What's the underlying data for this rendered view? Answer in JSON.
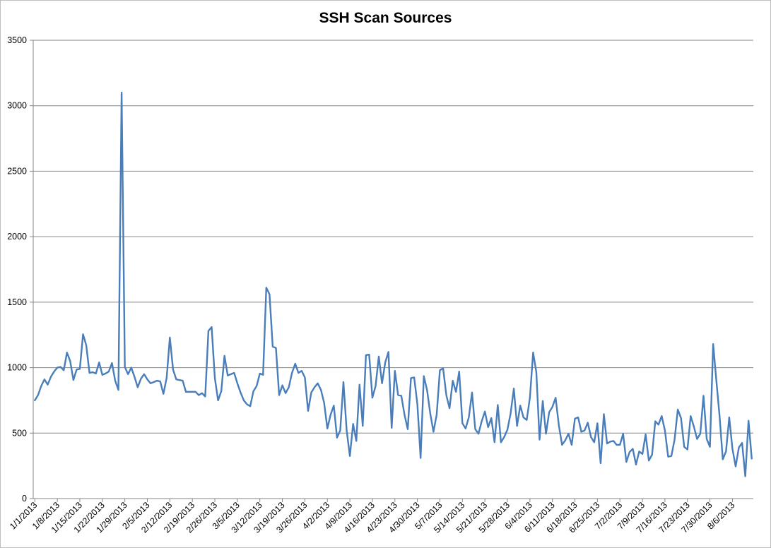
{
  "chart_data": {
    "type": "line",
    "title": "SSH Scan Sources",
    "xlabel": "",
    "ylabel": "",
    "ylim": [
      0,
      3500
    ],
    "yticks": [
      0,
      500,
      1000,
      1500,
      2000,
      2500,
      3000,
      3500
    ],
    "grid": "horizontal",
    "legend": "none",
    "series_color": "#4a7ebb",
    "x_start": "1/1/2013",
    "x_end": "8/12/2013",
    "x_tick_labels": [
      "1/1/2013",
      "1/8/2013",
      "1/15/2013",
      "1/22/2013",
      "1/29/2013",
      "2/5/2013",
      "2/12/2013",
      "2/19/2013",
      "2/26/2013",
      "3/5/2013",
      "3/12/2013",
      "3/19/2013",
      "3/26/2013",
      "4/2/2013",
      "4/9/2013",
      "4/16/2013",
      "4/23/2013",
      "4/30/2013",
      "5/7/2013",
      "5/14/2013",
      "5/21/2013",
      "5/28/2013",
      "6/4/2013",
      "6/11/2013",
      "6/18/2013",
      "6/25/2013",
      "7/2/2013",
      "7/9/2013",
      "7/16/2013",
      "7/23/2013",
      "7/30/2013",
      "8/6/2013"
    ],
    "values": [
      750,
      790,
      860,
      910,
      870,
      930,
      970,
      1000,
      1005,
      980,
      1115,
      1050,
      905,
      985,
      990,
      1255,
      1170,
      960,
      965,
      955,
      1040,
      945,
      955,
      970,
      1035,
      900,
      830,
      3100,
      1005,
      950,
      1000,
      930,
      850,
      915,
      950,
      910,
      880,
      890,
      900,
      895,
      800,
      920,
      1230,
      985,
      910,
      905,
      900,
      815,
      815,
      815,
      815,
      790,
      805,
      780,
      1280,
      1310,
      920,
      750,
      820,
      1090,
      940,
      950,
      960,
      880,
      810,
      750,
      720,
      705,
      820,
      860,
      955,
      945,
      1610,
      1560,
      1160,
      1150,
      790,
      865,
      805,
      850,
      960,
      1030,
      960,
      975,
      925,
      670,
      810,
      850,
      880,
      830,
      730,
      535,
      640,
      710,
      465,
      520,
      890,
      520,
      325,
      570,
      440,
      870,
      555,
      1095,
      1100,
      770,
      860,
      1085,
      880,
      1040,
      1120,
      540,
      975,
      790,
      785,
      640,
      530,
      920,
      925,
      720,
      310,
      935,
      830,
      650,
      510,
      640,
      980,
      995,
      790,
      690,
      900,
      815,
      970,
      575,
      535,
      620,
      810,
      530,
      495,
      590,
      665,
      545,
      615,
      430,
      715,
      430,
      470,
      525,
      650,
      840,
      555,
      710,
      620,
      600,
      770,
      1115,
      965,
      450,
      745,
      495,
      660,
      700,
      770,
      560,
      410,
      445,
      495,
      410,
      610,
      620,
      510,
      520,
      580,
      470,
      430,
      575,
      270,
      645,
      420,
      435,
      440,
      410,
      410,
      495,
      280,
      355,
      380,
      260,
      360,
      340,
      490,
      290,
      335,
      590,
      565,
      630,
      520,
      320,
      325,
      450,
      680,
      615,
      395,
      375,
      630,
      550,
      455,
      495,
      785,
      455,
      395,
      1180,
      900,
      630,
      300,
      360,
      620,
      380,
      245,
      390,
      425,
      170,
      595,
      305
    ]
  },
  "colors": {
    "line": "#4a7ebb",
    "gridline": "#868686",
    "axis": "#868686",
    "frame": "#bfbfbf"
  }
}
